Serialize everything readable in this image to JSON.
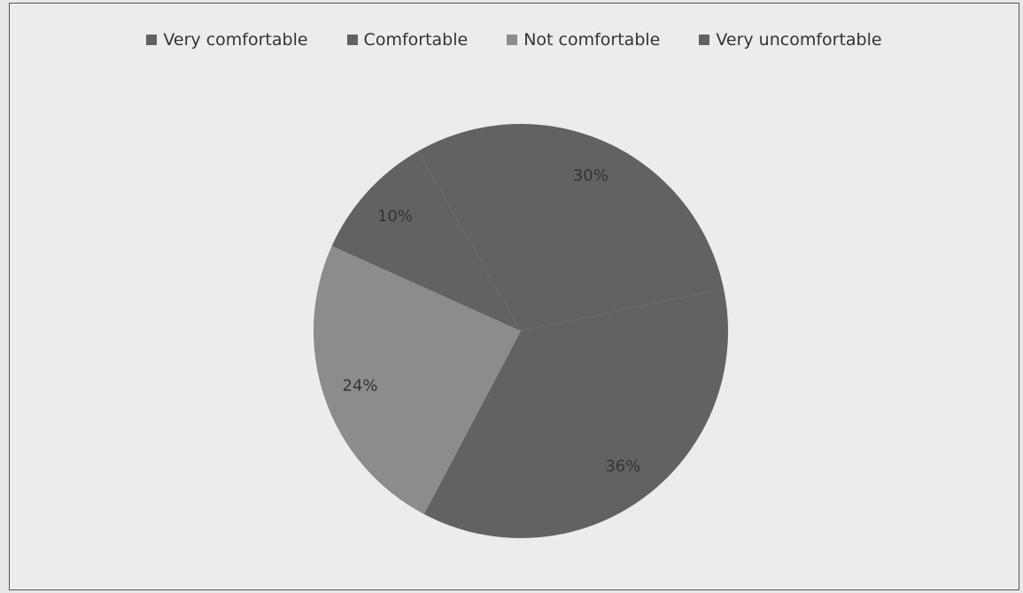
{
  "chart_data": {
    "type": "pie",
    "title": "",
    "legend_position": "top",
    "categories": [
      "Very comfortable",
      "Comfortable",
      "Not comfortable",
      "Very uncomfortable"
    ],
    "values": [
      30,
      36,
      24,
      10
    ],
    "labels": [
      "30%",
      "36%",
      "24%",
      "10%"
    ],
    "colors": [
      "#626262",
      "#626262",
      "#8c8c8c",
      "#626262"
    ]
  }
}
